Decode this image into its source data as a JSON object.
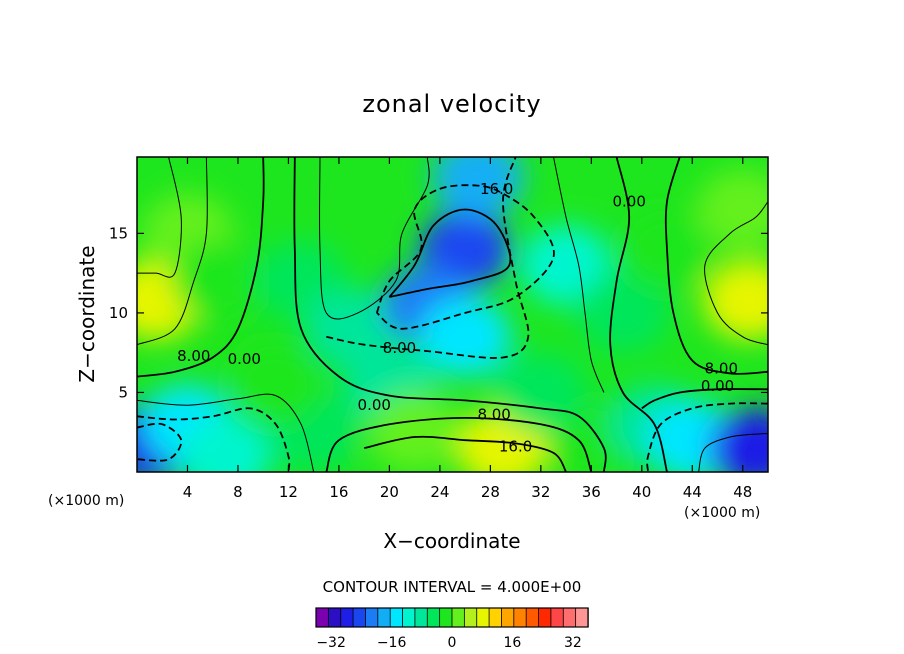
{
  "chart_data": {
    "type": "heatmap",
    "title": "zonal velocity",
    "xlabel": "X−coordinate",
    "ylabel": "Z−coordinate",
    "x_unit_left": "(×1000 m)",
    "x_unit_right": "(×1000 m)",
    "xlim": [
      0,
      50
    ],
    "ylim": [
      0,
      19.8
    ],
    "x_ticks": [
      4,
      8,
      12,
      16,
      20,
      24,
      28,
      32,
      36,
      40,
      44,
      48
    ],
    "y_ticks": [
      5,
      10,
      15
    ],
    "contour_interval_text": "CONTOUR INTERVAL = 4.000E+00",
    "colorbar": {
      "min": -36,
      "max": 36,
      "step": 4,
      "tick_values": [
        -32,
        -16,
        0,
        16,
        32
      ],
      "tick_labels": [
        "−32",
        "−16",
        "0",
        "16",
        "32"
      ],
      "colors": [
        "#7a00b0",
        "#2c0fc4",
        "#1e1ee6",
        "#1a46f0",
        "#1a7df5",
        "#12aef5",
        "#00e6ff",
        "#00f5cf",
        "#00e69a",
        "#00e65a",
        "#1ee61e",
        "#64f01e",
        "#b4f01e",
        "#e6f500",
        "#ffd200",
        "#ffa500",
        "#ff8200",
        "#ff5a00",
        "#ff2800",
        "#ff4646",
        "#ff6e6e",
        "#ff9696"
      ]
    },
    "contour_labels": [
      {
        "text": "16.0",
        "x": 28.5,
        "y": 17.8
      },
      {
        "text": "0.00",
        "x": 39.0,
        "y": 17.0
      },
      {
        "text": "8.00",
        "x": 4.5,
        "y": 7.3
      },
      {
        "text": "0.00",
        "x": 8.5,
        "y": 7.1
      },
      {
        "text": "8.00",
        "x": 20.8,
        "y": 7.8
      },
      {
        "text": "0.00",
        "x": 18.8,
        "y": 4.2
      },
      {
        "text": "8.00",
        "x": 28.3,
        "y": 3.6
      },
      {
        "text": "16.0",
        "x": 30.0,
        "y": 1.6
      },
      {
        "text": "8.00",
        "x": 46.3,
        "y": 6.5
      },
      {
        "text": "0.00",
        "x": 46.0,
        "y": 5.4
      }
    ],
    "field_features": [
      {
        "x": 1.5,
        "y": 10.8,
        "value": 17
      },
      {
        "x": 4.0,
        "y": 15.0,
        "value": 9
      },
      {
        "x": 6.5,
        "y": 12.0,
        "value": 5
      },
      {
        "x": 13.0,
        "y": 12.0,
        "value": 2
      },
      {
        "x": 17.0,
        "y": 9.0,
        "value": -2
      },
      {
        "x": 26.0,
        "y": 14.0,
        "value": -22
      },
      {
        "x": 23.0,
        "y": 10.5,
        "value": -18
      },
      {
        "x": 27.0,
        "y": 18.5,
        "value": -13
      },
      {
        "x": 26.0,
        "y": 8.5,
        "value": -9
      },
      {
        "x": 20.0,
        "y": 5.5,
        "value": -2
      },
      {
        "x": 34.0,
        "y": 13.0,
        "value": -6
      },
      {
        "x": 38.5,
        "y": 10.0,
        "value": 0
      },
      {
        "x": 42.0,
        "y": 14.0,
        "value": 4
      },
      {
        "x": 48.5,
        "y": 10.8,
        "value": 17
      },
      {
        "x": 48.0,
        "y": 16.5,
        "value": 9
      },
      {
        "x": 1.0,
        "y": 1.8,
        "value": -26
      },
      {
        "x": 4.0,
        "y": 3.0,
        "value": -10
      },
      {
        "x": 7.0,
        "y": 1.0,
        "value": -5
      },
      {
        "x": 14.0,
        "y": 2.5,
        "value": 2
      },
      {
        "x": 29.0,
        "y": 1.5,
        "value": 16
      },
      {
        "x": 22.0,
        "y": 2.5,
        "value": 10
      },
      {
        "x": 36.0,
        "y": 2.0,
        "value": 4
      },
      {
        "x": 41.0,
        "y": 3.0,
        "value": -4
      },
      {
        "x": 44.0,
        "y": 2.0,
        "value": -12
      },
      {
        "x": 49.0,
        "y": 1.5,
        "value": -26
      },
      {
        "x": 11.0,
        "y": 5.5,
        "value": 4
      },
      {
        "x": 32.0,
        "y": 5.0,
        "value": 2
      }
    ]
  }
}
